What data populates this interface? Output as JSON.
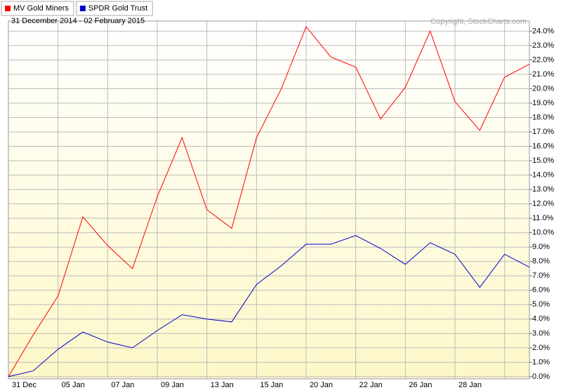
{
  "chart_data": {
    "type": "line",
    "title": "31 December 2014 - 02 February 2015",
    "annotation": "Copyright, StockCharts.com",
    "categories": [
      "31 Dec",
      null,
      "05 Jan",
      null,
      "07 Jan",
      null,
      "09 Jan",
      null,
      "13 Jan",
      null,
      "15 Jan",
      null,
      "20 Jan",
      null,
      "22 Jan",
      null,
      "26 Jan",
      null,
      "28 Jan",
      null,
      null,
      null
    ],
    "series": [
      {
        "name": "MV Gold Miners",
        "color": "#ff0000",
        "values": [
          0,
          2.9,
          5.6,
          11.1,
          9.1,
          7.5,
          12.5,
          16.6,
          11.6,
          10.3,
          16.6,
          20.0,
          24.3,
          22.2,
          21.5,
          17.9,
          20.1,
          24.0,
          19.1,
          17.1,
          20.8,
          21.7
        ]
      },
      {
        "name": "SPDR Gold Trust",
        "color": "#0000cc",
        "values": [
          0,
          0.4,
          1.9,
          3.1,
          2.4,
          2.0,
          3.2,
          4.3,
          4.0,
          3.8,
          6.4,
          7.7,
          9.2,
          9.2,
          9.8,
          8.9,
          7.8,
          9.3,
          8.5,
          6.2,
          8.5,
          7.6
        ]
      }
    ],
    "ylim": [
      -0.15,
      24.7
    ],
    "yticks": [
      {
        "value": 0,
        "label": "0.0%"
      },
      {
        "value": 1,
        "label": "1.0%"
      },
      {
        "value": 2,
        "label": "2.0%"
      },
      {
        "value": 3,
        "label": "3.0%"
      },
      {
        "value": 4,
        "label": "4.0%"
      },
      {
        "value": 5,
        "label": "5.0%"
      },
      {
        "value": 6,
        "label": "6.0%"
      },
      {
        "value": 7,
        "label": "7.0%"
      },
      {
        "value": 8,
        "label": "8.0%"
      },
      {
        "value": 9,
        "label": "9.0%"
      },
      {
        "value": 10,
        "label": "10.0%"
      },
      {
        "value": 11,
        "label": "11.0%"
      },
      {
        "value": 12,
        "label": "12.0%"
      },
      {
        "value": 13,
        "label": "13.0%"
      },
      {
        "value": 14,
        "label": "14.0%"
      },
      {
        "value": 15,
        "label": "15.0%"
      },
      {
        "value": 16,
        "label": "16.0%"
      },
      {
        "value": 17,
        "label": "17.0%"
      },
      {
        "value": 18,
        "label": "18.0%"
      },
      {
        "value": 19,
        "label": "19.0%"
      },
      {
        "value": 20,
        "label": "20.0%"
      },
      {
        "value": 21,
        "label": "21.0%"
      },
      {
        "value": 22,
        "label": "22.0%"
      },
      {
        "value": 23,
        "label": "23.0%"
      },
      {
        "value": 24,
        "label": "24.0%"
      }
    ],
    "grid": true
  }
}
